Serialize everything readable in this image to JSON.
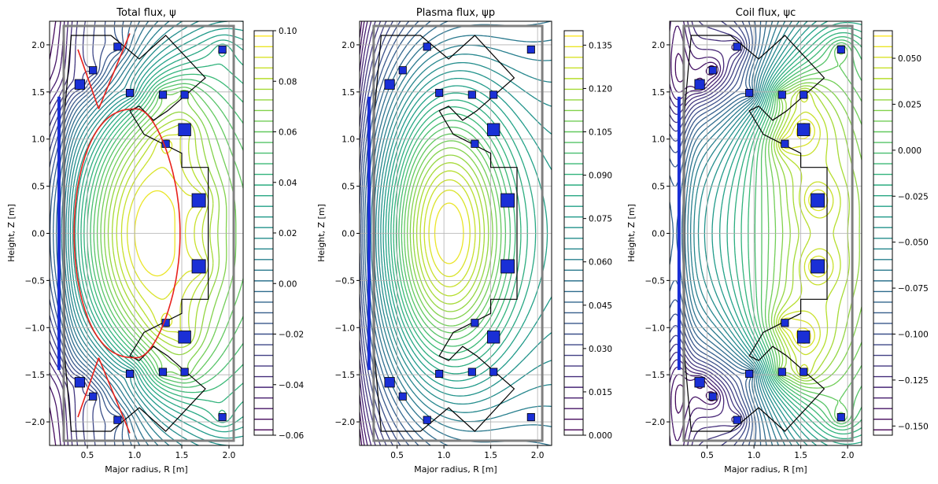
{
  "chart_data": [
    {
      "type": "contour",
      "title": "Total flux, ψ",
      "xlabel": "Major radius, R [m]",
      "ylabel": "Height, Z [m]",
      "xlim": [
        0.1,
        2.15
      ],
      "ylim": [
        -2.25,
        2.25
      ],
      "xticks": [
        "0.5",
        "1.0",
        "1.5",
        "2.0"
      ],
      "yticks": [
        "−2.0",
        "−1.5",
        "−1.0",
        "−0.5",
        "0.0",
        "0.5",
        "1.0",
        "1.5",
        "2.0"
      ],
      "colorbar": {
        "range": [
          -0.06,
          0.1
        ],
        "ticks": [
          "−0.06",
          "−0.04",
          "−0.02",
          "0.00",
          "0.02",
          "0.04",
          "0.06",
          "0.08",
          "0.10"
        ]
      },
      "grid": true,
      "separatrix": true
    },
    {
      "type": "contour",
      "title": "Plasma flux, ψp",
      "xlabel": "Major radius, R [m]",
      "ylabel": "Height, Z [m]",
      "xlim": [
        0.1,
        2.15
      ],
      "ylim": [
        -2.25,
        2.25
      ],
      "xticks": [
        "0.5",
        "1.0",
        "1.5",
        "2.0"
      ],
      "yticks": [
        "−2.0",
        "−1.5",
        "−1.0",
        "−0.5",
        "0.0",
        "0.5",
        "1.0",
        "1.5",
        "2.0"
      ],
      "colorbar": {
        "range": [
          0.0,
          0.14
        ],
        "ticks": [
          "0.000",
          "0.015",
          "0.030",
          "0.045",
          "0.060",
          "0.075",
          "0.090",
          "0.105",
          "0.120",
          "0.135"
        ]
      },
      "grid": true,
      "separatrix": false
    },
    {
      "type": "contour",
      "title": "Coil flux, ψc",
      "xlabel": "Major radius, R [m]",
      "ylabel": "Height, Z [m]",
      "xlim": [
        0.1,
        2.15
      ],
      "ylim": [
        -2.25,
        2.25
      ],
      "xticks": [
        "0.5",
        "1.0",
        "1.5",
        "2.0"
      ],
      "yticks": [
        "−2.0",
        "−1.5",
        "−1.0",
        "−0.5",
        "0.0",
        "0.5",
        "1.0",
        "1.5",
        "2.0"
      ],
      "colorbar": {
        "range": [
          -0.155,
          0.065
        ],
        "ticks": [
          "−0.150",
          "−0.125",
          "−0.100",
          "−0.075",
          "−0.050",
          "−0.025",
          "0.000",
          "0.025",
          "0.050"
        ]
      },
      "grid": true,
      "separatrix": false
    }
  ],
  "colors": {
    "separatrix": "#e8211b",
    "coil_fill": "#1a2fd6",
    "coil_outline": "#000000",
    "vessel": "#808080",
    "grid": "#b0b0b0"
  }
}
